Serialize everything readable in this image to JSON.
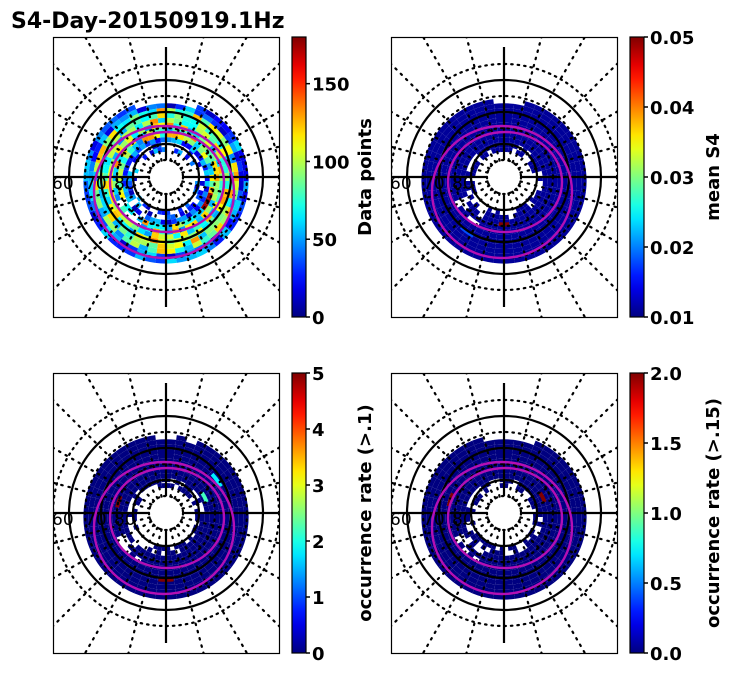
{
  "figure_title": "S4-Day-20150919.1Hz",
  "chart_data": [
    {
      "type": "heatmap",
      "projection": "polar",
      "title": "",
      "colormap": "jet",
      "colorbar": {
        "label": "Data points",
        "range": [
          0,
          180
        ],
        "ticks": [
          0,
          50,
          100,
          150
        ],
        "tick_labels": [
          "0",
          "50",
          "100",
          "150"
        ]
      },
      "lat_labels": [
        "60",
        "70",
        "80"
      ],
      "ring_lat_range": [
        65,
        82
      ],
      "cells_note": "polar bins (lat band, MLT sector) colored by value",
      "cells": [
        {
          "lat": 66,
          "mlt_band": "all",
          "value": 20
        },
        {
          "lat": 68,
          "mlt_band": "dusk",
          "value": 130
        },
        {
          "lat": 70,
          "mlt_band": "all",
          "value": 70
        },
        {
          "lat": 72,
          "mlt_band": "all",
          "value": 90
        },
        {
          "lat": 74,
          "mlt_band": "noon",
          "value": 110
        },
        {
          "lat": 74,
          "mlt_band": "dawn",
          "value": 175
        },
        {
          "lat": 76,
          "mlt_band": "all",
          "value": 60
        },
        {
          "lat": 78,
          "mlt_band": "all",
          "value": 45
        },
        {
          "lat": 80,
          "mlt_band": "partial",
          "value": 25
        }
      ]
    },
    {
      "type": "heatmap",
      "projection": "polar",
      "colormap": "jet",
      "colorbar": {
        "label": "mean S4",
        "range": [
          0.01,
          0.05
        ],
        "ticks": [
          0.01,
          0.02,
          0.03,
          0.04,
          0.05
        ],
        "tick_labels": [
          "0.01",
          "0.02",
          "0.03",
          "0.04",
          "0.05"
        ]
      },
      "lat_labels": [
        "60",
        "70",
        "80"
      ],
      "ring_lat_range": [
        65,
        82
      ],
      "cells": [
        {
          "lat": 66,
          "mlt_band": "all",
          "value": 0.011
        },
        {
          "lat": 70,
          "mlt_band": "all",
          "value": 0.011
        },
        {
          "lat": 74,
          "mlt_band": "all",
          "value": 0.011
        },
        {
          "lat": 78,
          "mlt_band": "all",
          "value": 0.011
        },
        {
          "lat": 76,
          "mlt_band": "midnight",
          "value": 0.05
        },
        {
          "lat": 70,
          "mlt_band": "midnight-dusk",
          "value": 0.018
        }
      ]
    },
    {
      "type": "heatmap",
      "projection": "polar",
      "colormap": "jet",
      "colorbar": {
        "label": "occurrence rate (>.1)",
        "range": [
          0,
          5
        ],
        "ticks": [
          0,
          1,
          2,
          3,
          4,
          5
        ],
        "tick_labels": [
          "0",
          "1",
          "2",
          "3",
          "4",
          "5"
        ]
      },
      "lat_labels": [
        "60",
        "70",
        "80"
      ],
      "ring_lat_range": [
        65,
        82
      ],
      "cells": [
        {
          "lat": 66,
          "mlt_band": "all",
          "value": 0
        },
        {
          "lat": 70,
          "mlt_band": "all",
          "value": 0
        },
        {
          "lat": 74,
          "mlt_band": "all",
          "value": 0
        },
        {
          "lat": 78,
          "mlt_band": "all",
          "value": 0
        },
        {
          "lat": 70,
          "mlt_band": "noon-dawn",
          "value": 1.8
        },
        {
          "lat": 76,
          "mlt_band": "dawn",
          "value": 2.2
        },
        {
          "lat": 74,
          "mlt_band": "dusk",
          "value": 5
        },
        {
          "lat": 70,
          "mlt_band": "midnight",
          "value": 5
        }
      ]
    },
    {
      "type": "heatmap",
      "projection": "polar",
      "colormap": "jet",
      "colorbar": {
        "label": "occurrence rate (>.15)",
        "range": [
          0,
          2
        ],
        "ticks": [
          0,
          0.5,
          1,
          1.5,
          2
        ],
        "tick_labels": [
          "0.0",
          "0.5",
          "1.0",
          "1.5",
          "2.0"
        ]
      },
      "lat_labels": [
        "60",
        "70",
        "80"
      ],
      "ring_lat_range": [
        65,
        82
      ],
      "cells": [
        {
          "lat": 66,
          "mlt_band": "all",
          "value": 0
        },
        {
          "lat": 70,
          "mlt_band": "all",
          "value": 0
        },
        {
          "lat": 74,
          "mlt_band": "all",
          "value": 0
        },
        {
          "lat": 78,
          "mlt_band": "all",
          "value": 0
        },
        {
          "lat": 72,
          "mlt_band": "dusk",
          "value": 2
        },
        {
          "lat": 76,
          "mlt_band": "dawn",
          "value": 2
        }
      ]
    }
  ]
}
